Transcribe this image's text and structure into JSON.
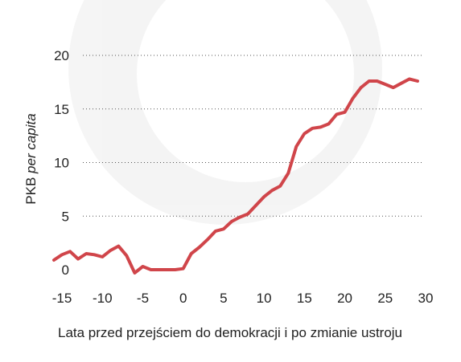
{
  "chart_data": {
    "type": "line",
    "xlabel": "Lata przed przejściem do demokracji i po zmianie ustroju",
    "ylabel": {
      "normal": "PKB ",
      "italic": "per capita"
    },
    "title": "",
    "xlim": [
      -16,
      30
    ],
    "ylim": [
      0,
      20
    ],
    "xticks": [
      -15,
      -10,
      -5,
      0,
      5,
      10,
      15,
      20,
      25,
      30
    ],
    "yticks": [
      0,
      5,
      10,
      15,
      20
    ],
    "grid": "horizontal-dotted",
    "series": [
      {
        "color": "#d0454a",
        "x": [
          -16,
          -15,
          -14,
          -13,
          -12,
          -11,
          -10,
          -9,
          -8,
          -7,
          -6,
          -5,
          -4,
          -3,
          -2,
          -1,
          0,
          1,
          2,
          3,
          4,
          5,
          6,
          7,
          8,
          9,
          10,
          11,
          12,
          13,
          14,
          15,
          16,
          17,
          18,
          19,
          20,
          21,
          22,
          23,
          24,
          25,
          26,
          27,
          28,
          29
        ],
        "values": [
          0.9,
          1.4,
          1.7,
          1.0,
          1.5,
          1.4,
          1.2,
          1.8,
          2.2,
          1.3,
          -0.3,
          0.3,
          0.0,
          0.0,
          0.0,
          0.0,
          0.1,
          1.5,
          2.1,
          2.8,
          3.6,
          3.8,
          4.5,
          4.9,
          5.2,
          6.0,
          6.8,
          7.4,
          7.8,
          9.0,
          11.5,
          12.7,
          13.2,
          13.3,
          13.6,
          14.5,
          14.7,
          16.0,
          17.0,
          17.6,
          17.6,
          17.3,
          17.0,
          17.4,
          17.8,
          17.6
        ]
      }
    ]
  }
}
